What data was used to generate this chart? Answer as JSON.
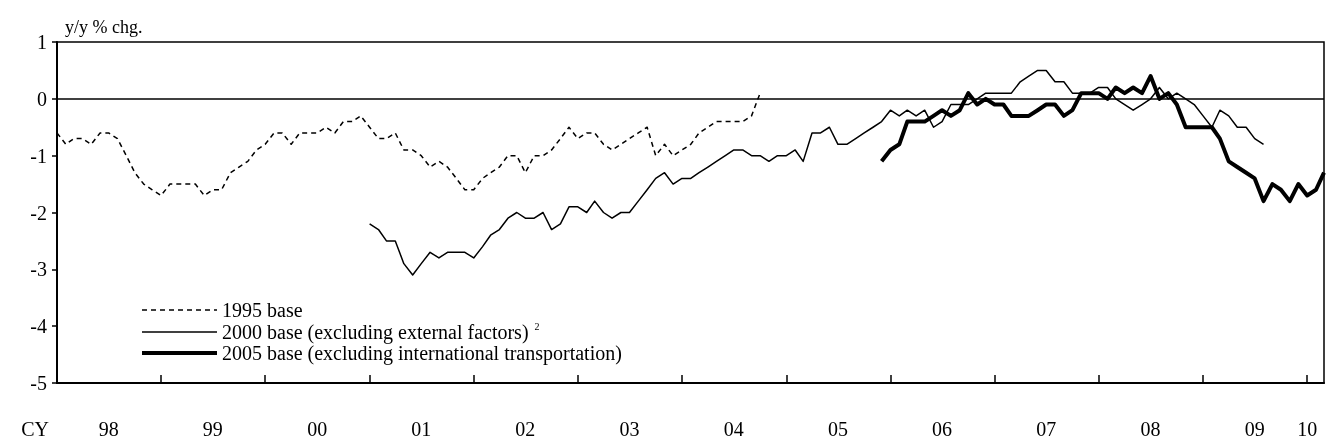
{
  "chart_data": {
    "type": "line",
    "ylabel": "y/y % chg.",
    "xlabel": "CY",
    "x": [
      "1998-01",
      "1998-02",
      "1998-03",
      "1998-04",
      "1998-05",
      "1998-06",
      "1998-07",
      "1998-08",
      "1998-09",
      "1998-10",
      "1998-11",
      "1998-12",
      "1999-01",
      "1999-02",
      "1999-03",
      "1999-04",
      "1999-05",
      "1999-06",
      "1999-07",
      "1999-08",
      "1999-09",
      "1999-10",
      "1999-11",
      "1999-12",
      "2000-01",
      "2000-02",
      "2000-03",
      "2000-04",
      "2000-05",
      "2000-06",
      "2000-07",
      "2000-08",
      "2000-09",
      "2000-10",
      "2000-11",
      "2000-12",
      "2001-01",
      "2001-02",
      "2001-03",
      "2001-04",
      "2001-05",
      "2001-06",
      "2001-07",
      "2001-08",
      "2001-09",
      "2001-10",
      "2001-11",
      "2001-12",
      "2002-01",
      "2002-02",
      "2002-03",
      "2002-04",
      "2002-05",
      "2002-06",
      "2002-07",
      "2002-08",
      "2002-09",
      "2002-10",
      "2002-11",
      "2002-12",
      "2003-01",
      "2003-02",
      "2003-03",
      "2003-04",
      "2003-05",
      "2003-06",
      "2003-07",
      "2003-08",
      "2003-09",
      "2003-10",
      "2003-11",
      "2003-12",
      "2004-01",
      "2004-02",
      "2004-03",
      "2004-04",
      "2004-05",
      "2004-06",
      "2004-07",
      "2004-08",
      "2004-09",
      "2004-10",
      "2004-11",
      "2004-12",
      "2005-01",
      "2005-02",
      "2005-03",
      "2005-04",
      "2005-05",
      "2005-06",
      "2005-07",
      "2005-08",
      "2005-09",
      "2005-10",
      "2005-11",
      "2005-12",
      "2006-01",
      "2006-02",
      "2006-03",
      "2006-04",
      "2006-05",
      "2006-06",
      "2006-07",
      "2006-08",
      "2006-09",
      "2006-10",
      "2006-11",
      "2006-12",
      "2007-01",
      "2007-02",
      "2007-03",
      "2007-04",
      "2007-05",
      "2007-06",
      "2007-07",
      "2007-08",
      "2007-09",
      "2007-10",
      "2007-11",
      "2007-12",
      "2008-01",
      "2008-02",
      "2008-03",
      "2008-04",
      "2008-05",
      "2008-06",
      "2008-07",
      "2008-08",
      "2008-09",
      "2008-10",
      "2008-11",
      "2008-12",
      "2009-01",
      "2009-02",
      "2009-03",
      "2009-04",
      "2009-05",
      "2009-06",
      "2009-07",
      "2009-08",
      "2009-09",
      "2009-10",
      "2009-11",
      "2009-12",
      "2010-01",
      "2010-02",
      "2010-03"
    ],
    "series": [
      {
        "name": "1995 base",
        "color": "#000000",
        "line_style": "dashed",
        "values": [
          -0.6,
          -0.8,
          -0.7,
          -0.7,
          -0.8,
          -0.6,
          -0.6,
          -0.7,
          -1.0,
          -1.3,
          -1.5,
          -1.6,
          -1.7,
          -1.5,
          -1.5,
          -1.5,
          -1.5,
          -1.7,
          -1.6,
          -1.6,
          -1.3,
          -1.2,
          -1.1,
          -0.9,
          -0.8,
          -0.6,
          -0.6,
          -0.8,
          -0.6,
          -0.6,
          -0.6,
          -0.5,
          -0.6,
          -0.4,
          -0.4,
          -0.3,
          -0.5,
          -0.7,
          -0.7,
          -0.6,
          -0.9,
          -0.9,
          -1.0,
          -1.2,
          -1.1,
          -1.2,
          -1.4,
          -1.6,
          -1.6,
          -1.4,
          -1.3,
          -1.2,
          -1.0,
          -1.0,
          -1.3,
          -1.0,
          -1.0,
          -0.9,
          -0.7,
          -0.5,
          -0.7,
          -0.6,
          -0.6,
          -0.8,
          -0.9,
          -0.8,
          -0.7,
          -0.6,
          -0.5,
          -1.0,
          -0.8,
          -1.0,
          -0.9,
          -0.8,
          -0.6,
          -0.5,
          -0.4,
          -0.4,
          -0.4,
          -0.4,
          -0.3,
          0.1,
          null,
          null,
          null,
          null,
          null,
          null,
          null,
          null,
          null,
          null,
          null,
          null,
          null,
          null,
          null,
          null,
          null,
          null,
          null,
          null,
          null,
          null,
          null,
          null,
          null,
          null,
          null,
          null,
          null,
          null,
          null,
          null,
          null,
          null,
          null,
          null,
          null,
          null,
          null,
          null,
          null,
          null,
          null,
          null,
          null,
          null,
          null,
          null,
          null,
          null,
          null,
          null,
          null,
          null,
          null,
          null,
          null,
          null,
          null,
          null,
          null,
          null,
          null,
          null,
          null
        ]
      },
      {
        "name": "2000 base (excluding external factors)$^{2}$",
        "color": "#000000",
        "line_style": "solid",
        "values": [
          null,
          null,
          null,
          null,
          null,
          null,
          null,
          null,
          null,
          null,
          null,
          null,
          null,
          null,
          null,
          null,
          null,
          null,
          null,
          null,
          null,
          null,
          null,
          null,
          null,
          null,
          null,
          null,
          null,
          null,
          null,
          null,
          null,
          null,
          null,
          null,
          -2.2,
          -2.3,
          -2.5,
          -2.5,
          -2.9,
          -3.1,
          -2.9,
          -2.7,
          -2.8,
          -2.7,
          -2.7,
          -2.7,
          -2.8,
          -2.6,
          -2.4,
          -2.3,
          -2.1,
          -2.0,
          -2.1,
          -2.1,
          -2.0,
          -2.3,
          -2.2,
          -1.9,
          -1.9,
          -2.0,
          -1.8,
          -2.0,
          -2.1,
          -2.0,
          -2.0,
          -1.8,
          -1.6,
          -1.4,
          -1.3,
          -1.5,
          -1.4,
          -1.4,
          -1.3,
          -1.2,
          -1.1,
          -1.0,
          -0.9,
          -0.9,
          -1.0,
          -1.0,
          -1.1,
          -1.0,
          -1.0,
          -0.9,
          -1.1,
          -0.6,
          -0.6,
          -0.5,
          -0.8,
          -0.8,
          -0.7,
          -0.6,
          -0.5,
          -0.4,
          -0.2,
          -0.3,
          -0.2,
          -0.3,
          -0.2,
          -0.5,
          -0.4,
          -0.1,
          -0.1,
          -0.1,
          0.0,
          0.1,
          0.1,
          0.1,
          0.1,
          0.3,
          0.4,
          0.5,
          0.5,
          0.3,
          0.3,
          0.1,
          0.1,
          0.1,
          0.2,
          0.2,
          0.0,
          -0.1,
          -0.2,
          -0.1,
          0.0,
          0.2,
          0.0,
          0.1,
          0.0,
          -0.1,
          -0.3,
          -0.5,
          -0.2,
          -0.3,
          -0.5,
          -0.5,
          -0.7,
          -0.8,
          null,
          null,
          null,
          null,
          null,
          null,
          null
        ]
      },
      {
        "name": "2005 base (excluding international transportation)",
        "color": "#000000",
        "line_style": "solid",
        "values": [
          null,
          null,
          null,
          null,
          null,
          null,
          null,
          null,
          null,
          null,
          null,
          null,
          null,
          null,
          null,
          null,
          null,
          null,
          null,
          null,
          null,
          null,
          null,
          null,
          null,
          null,
          null,
          null,
          null,
          null,
          null,
          null,
          null,
          null,
          null,
          null,
          null,
          null,
          null,
          null,
          null,
          null,
          null,
          null,
          null,
          null,
          null,
          null,
          null,
          null,
          null,
          null,
          null,
          null,
          null,
          null,
          null,
          null,
          null,
          null,
          null,
          null,
          null,
          null,
          null,
          null,
          null,
          null,
          null,
          null,
          null,
          null,
          null,
          null,
          null,
          null,
          null,
          null,
          null,
          null,
          null,
          null,
          null,
          null,
          null,
          null,
          null,
          null,
          null,
          null,
          null,
          null,
          null,
          null,
          null,
          -1.1,
          -0.9,
          -0.8,
          -0.4,
          -0.4,
          -0.4,
          -0.3,
          -0.2,
          -0.3,
          -0.2,
          0.1,
          -0.1,
          0.0,
          -0.1,
          -0.1,
          -0.3,
          -0.3,
          -0.3,
          -0.2,
          -0.1,
          -0.1,
          -0.3,
          -0.2,
          0.1,
          0.1,
          0.1,
          0.0,
          0.2,
          0.1,
          0.2,
          0.1,
          0.4,
          0.0,
          0.1,
          -0.1,
          -0.5,
          -0.5,
          -0.5,
          -0.5,
          -0.7,
          -1.1,
          -1.2,
          -1.3,
          -1.4,
          -1.8,
          -1.5,
          -1.6,
          -1.8,
          -1.5,
          -1.7,
          -1.6,
          -1.3
        ]
      }
    ],
    "xlim": [
      "1998-01",
      "2010-03"
    ],
    "xticks": [
      {
        "value": "1999-01",
        "label": null
      },
      {
        "value": "2000-01",
        "label": null
      },
      {
        "value": "2001-01",
        "label": null
      },
      {
        "value": "2002-01",
        "label": null
      },
      {
        "value": "2003-01",
        "label": null
      },
      {
        "value": "2004-01",
        "label": null
      },
      {
        "value": "2005-01",
        "label": null
      },
      {
        "value": "2006-01",
        "label": null
      },
      {
        "value": "2007-01",
        "label": null
      },
      {
        "value": "2008-01",
        "label": null
      },
      {
        "value": "2009-01",
        "label": null
      },
      {
        "value": "2010-01",
        "label": null
      },
      {
        "value": "1998-07",
        "label": "98"
      },
      {
        "value": "1999-07",
        "label": "99"
      },
      {
        "value": "2000-07",
        "label": "00"
      },
      {
        "value": "2001-07",
        "label": "01"
      },
      {
        "value": "2002-07",
        "label": "02"
      },
      {
        "value": "2003-07",
        "label": "03"
      },
      {
        "value": "2004-07",
        "label": "04"
      },
      {
        "value": "2005-07",
        "label": "05"
      },
      {
        "value": "2006-07",
        "label": "06"
      },
      {
        "value": "2007-07",
        "label": "07"
      },
      {
        "value": "2008-07",
        "label": "08"
      },
      {
        "value": "2009-07",
        "label": "09"
      },
      {
        "value": "2010-01",
        "label": "10"
      }
    ],
    "ylim": [
      -5,
      1
    ],
    "yticks": [
      -5,
      -4,
      -3,
      -2,
      -1,
      0,
      1
    ],
    "ref_lines": [
      {
        "axis": "y",
        "value": 0,
        "color": "#000000"
      }
    ],
    "grid": false,
    "legend": "bottom left",
    "marker": "none"
  }
}
